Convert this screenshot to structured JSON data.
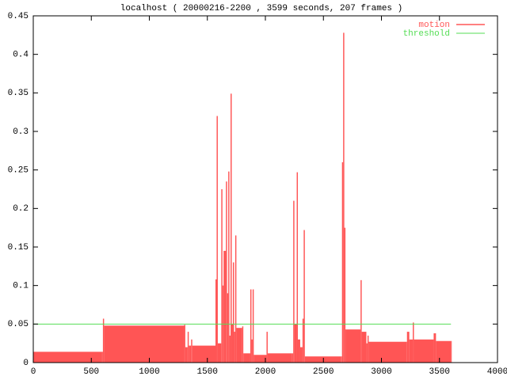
{
  "chart_data": {
    "type": "impulse-area",
    "title": "localhost ( 20000216-2200 , 3599 seconds, 207 frames )",
    "xlim": [
      0,
      4000
    ],
    "xticks": [
      0,
      500,
      1000,
      1500,
      2000,
      2500,
      3000,
      3500,
      4000
    ],
    "ylim": [
      0,
      0.45
    ],
    "yticks": [
      0,
      0.05,
      0.1,
      0.15,
      0.2,
      0.25,
      0.3,
      0.35,
      0.4,
      0.45
    ],
    "legend": "top-right",
    "series": [
      {
        "name": "motion",
        "color": "#ff5555",
        "legend_color": "#ff0000",
        "style": "impulses",
        "x": [
          0,
          590,
          600,
          610,
          1300,
          1310,
          1330,
          1340,
          1360,
          1370,
          1570,
          1580,
          1590,
          1620,
          1630,
          1640,
          1660,
          1670,
          1680,
          1690,
          1700,
          1710,
          1720,
          1730,
          1740,
          1750,
          1800,
          1810,
          1870,
          1880,
          1890,
          1900,
          2010,
          2020,
          2230,
          2240,
          2250,
          2270,
          2280,
          2300,
          2320,
          2330,
          2340,
          2650,
          2660,
          2670,
          2680,
          2690,
          2820,
          2830,
          2870,
          2880,
          2890,
          3220,
          3240,
          3270,
          3280,
          3450,
          3470,
          3599
        ],
        "values": [
          0.014,
          0.014,
          0.057,
          0.048,
          0.049,
          0.02,
          0.04,
          0.022,
          0.03,
          0.022,
          0.108,
          0.32,
          0.025,
          0.225,
          0.1,
          0.145,
          0.235,
          0.09,
          0.248,
          0.035,
          0.349,
          0.05,
          0.13,
          0.04,
          0.165,
          0.045,
          0.047,
          0.012,
          0.095,
          0.03,
          0.095,
          0.01,
          0.04,
          0.012,
          0.012,
          0.21,
          0.05,
          0.247,
          0.03,
          0.02,
          0.057,
          0.172,
          0.008,
          0.008,
          0.26,
          0.428,
          0.175,
          0.043,
          0.107,
          0.04,
          0.025,
          0.035,
          0.027,
          0.04,
          0.03,
          0.052,
          0.03,
          0.038,
          0.028,
          0.028
        ]
      },
      {
        "name": "threshold",
        "color": "#55dd55",
        "style": "line",
        "x": [
          0,
          3599
        ],
        "values": [
          0.05,
          0.05
        ]
      }
    ]
  }
}
